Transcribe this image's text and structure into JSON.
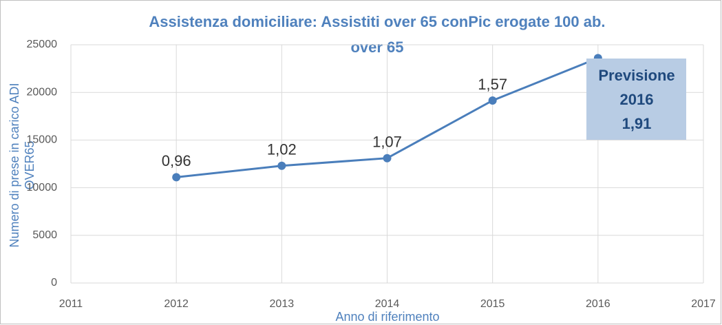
{
  "chart_data": {
    "type": "line",
    "title": [
      "Assistenza domiciliare:  Assistiti over 65 conPic erogate 100 ab.",
      "over 65"
    ],
    "x_label": "Anno di riferimento",
    "y_label": [
      "Numero di prese in carico ADI",
      "OVER65"
    ],
    "x": [
      2012,
      2013,
      2014,
      2015,
      2016
    ],
    "series": [
      {
        "name": "Assistiti",
        "color": "#4a7ebb",
        "values": [
          11100,
          12300,
          13100,
          19150,
          23600
        ]
      }
    ],
    "point_labels": [
      "0,96",
      "1,02",
      "1,07",
      "1,57",
      null
    ],
    "callout": [
      "Previsione",
      "2016",
      "1,91"
    ],
    "xlim": [
      2011,
      2017
    ],
    "xticks": [
      2011,
      2012,
      2013,
      2014,
      2015,
      2016,
      2017
    ],
    "ylim": [
      0,
      25000
    ],
    "yticks": [
      0,
      5000,
      10000,
      15000,
      20000,
      25000
    ],
    "grid": true
  }
}
